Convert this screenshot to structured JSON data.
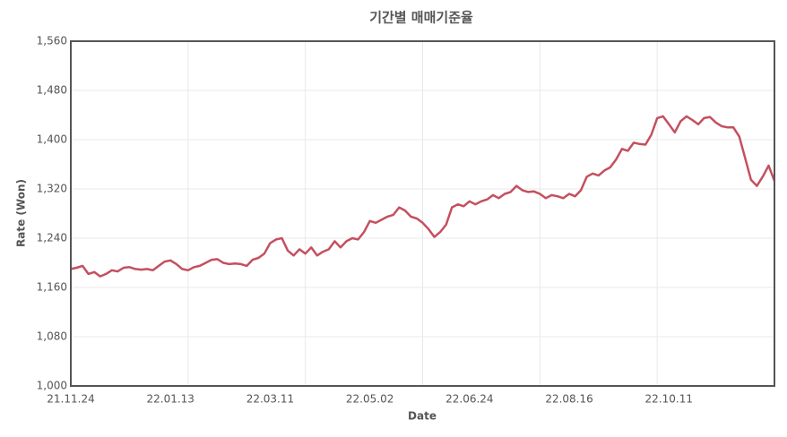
{
  "chart_data": {
    "type": "line",
    "title": "기간별 매매기준율",
    "x_label": "Date",
    "y_label": "Rate (Won)",
    "categories": [
      "21.11.24",
      null,
      null,
      null,
      null,
      null,
      null,
      null,
      null,
      null,
      null,
      null,
      null,
      null,
      null,
      null,
      null,
      "22.01.13",
      null,
      null,
      null,
      null,
      null,
      null,
      null,
      null,
      null,
      null,
      null,
      null,
      null,
      null,
      null,
      null,
      "22.03.11",
      null,
      null,
      null,
      null,
      null,
      null,
      null,
      null,
      null,
      null,
      null,
      null,
      null,
      null,
      null,
      null,
      "22.05.02",
      null,
      null,
      null,
      null,
      null,
      null,
      null,
      null,
      null,
      null,
      null,
      null,
      null,
      null,
      null,
      null,
      "22.06.24",
      null,
      null,
      null,
      null,
      null,
      null,
      null,
      null,
      null,
      null,
      null,
      null,
      null,
      null,
      null,
      null,
      "22.08.16",
      null,
      null,
      null,
      null,
      null,
      null,
      null,
      null,
      null,
      null,
      null,
      null,
      null,
      null,
      null,
      null,
      "22.10.11",
      null,
      null,
      null,
      null,
      null,
      null,
      null,
      null,
      null,
      null,
      null,
      null,
      null,
      null,
      null,
      null,
      null,
      null
    ],
    "values": [
      1190,
      1192,
      1195,
      1182,
      1185,
      1178,
      1182,
      1188,
      1186,
      1192,
      1193,
      1190,
      1189,
      1190,
      1188,
      1195,
      1202,
      1204,
      1198,
      1190,
      1188,
      1193,
      1195,
      1200,
      1205,
      1206,
      1200,
      1198,
      1199,
      1198,
      1195,
      1205,
      1208,
      1215,
      1232,
      1238,
      1240,
      1220,
      1212,
      1222,
      1215,
      1225,
      1212,
      1218,
      1222,
      1235,
      1225,
      1235,
      1240,
      1238,
      1250,
      1268,
      1265,
      1270,
      1275,
      1278,
      1290,
      1285,
      1275,
      1272,
      1265,
      1255,
      1242,
      1250,
      1262,
      1290,
      1295,
      1292,
      1300,
      1295,
      1300,
      1303,
      1310,
      1305,
      1312,
      1315,
      1325,
      1318,
      1315,
      1316,
      1312,
      1305,
      1310,
      1308,
      1305,
      1312,
      1308,
      1318,
      1340,
      1345,
      1342,
      1350,
      1355,
      1368,
      1385,
      1382,
      1395,
      1393,
      1392,
      1408,
      1435,
      1438,
      1425,
      1412,
      1430,
      1438,
      1432,
      1425,
      1435,
      1437,
      1428,
      1422,
      1420,
      1420,
      1405,
      1370,
      1335,
      1325,
      1340,
      1358,
      1333
    ],
    "color": "#c4505f",
    "ylim": [
      1000,
      1560
    ],
    "yticks": [
      {
        "value": 1000,
        "label": "1,000"
      },
      {
        "value": 1080,
        "label": "1,080"
      },
      {
        "value": 1160,
        "label": "1,160"
      },
      {
        "value": 1240,
        "label": "1,240"
      },
      {
        "value": 1320,
        "label": "1,320"
      },
      {
        "value": 1400,
        "label": "1,400"
      },
      {
        "value": 1480,
        "label": "1,480"
      },
      {
        "value": 1560,
        "label": "1,560"
      }
    ],
    "grid": true
  }
}
